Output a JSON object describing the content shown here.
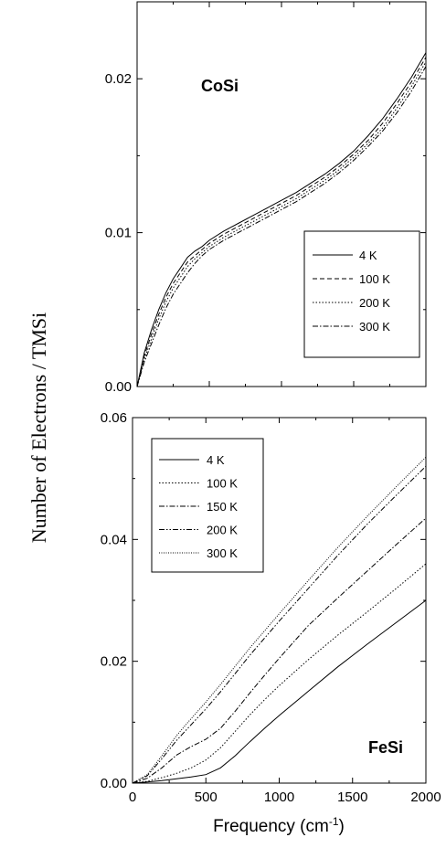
{
  "figure": {
    "ylabel": "Number of Electrons / TMSi",
    "xlabel_main": "Frequency (cm",
    "xlabel_sup": "-1",
    "xlabel_end": ")"
  },
  "chart_data": [
    {
      "type": "line",
      "panel_label": "CoSi",
      "xlim": [
        0,
        2000
      ],
      "ylim": [
        0,
        0.025
      ],
      "yticks": [
        0.0,
        0.01,
        0.02
      ],
      "ytick_labels": [
        "0.00",
        "0.01",
        "0.02"
      ],
      "xticks": [
        0,
        500,
        1000,
        1500,
        2000
      ],
      "xtick_labels": [],
      "legend_position": "center-right",
      "series": [
        {
          "name": "4 K",
          "style": "solid",
          "x": [
            0,
            50,
            100,
            150,
            200,
            250,
            300,
            350,
            400,
            450,
            500,
            600,
            700,
            800,
            900,
            1000,
            1100,
            1200,
            1300,
            1400,
            1500,
            1600,
            1700,
            1800,
            1900,
            2000
          ],
          "y": [
            0,
            0.0022,
            0.0037,
            0.005,
            0.0061,
            0.007,
            0.0077,
            0.0084,
            0.0088,
            0.0091,
            0.0095,
            0.0101,
            0.0106,
            0.0111,
            0.0116,
            0.0121,
            0.0126,
            0.0132,
            0.0138,
            0.0145,
            0.0153,
            0.0163,
            0.0174,
            0.0187,
            0.0201,
            0.0217
          ]
        },
        {
          "name": "100 K",
          "style": "dashed",
          "x": [
            0,
            50,
            100,
            150,
            200,
            250,
            300,
            350,
            400,
            450,
            500,
            600,
            700,
            800,
            900,
            1000,
            1100,
            1200,
            1300,
            1400,
            1500,
            1600,
            1700,
            1800,
            1900,
            2000
          ],
          "y": [
            0,
            0.002,
            0.0034,
            0.0047,
            0.0058,
            0.0067,
            0.0074,
            0.0081,
            0.0085,
            0.0089,
            0.0093,
            0.0099,
            0.0104,
            0.0109,
            0.0114,
            0.0119,
            0.0124,
            0.013,
            0.0136,
            0.0143,
            0.0151,
            0.016,
            0.0171,
            0.0184,
            0.0198,
            0.0214
          ]
        },
        {
          "name": "200 K",
          "style": "dotted",
          "x": [
            0,
            50,
            100,
            150,
            200,
            250,
            300,
            350,
            400,
            450,
            500,
            600,
            700,
            800,
            900,
            1000,
            1100,
            1200,
            1300,
            1400,
            1500,
            1600,
            1700,
            1800,
            1900,
            2000
          ],
          "y": [
            0,
            0.0018,
            0.0031,
            0.0044,
            0.0055,
            0.0064,
            0.0071,
            0.0078,
            0.0083,
            0.0087,
            0.0091,
            0.0097,
            0.0102,
            0.0107,
            0.0112,
            0.0117,
            0.0122,
            0.0128,
            0.0134,
            0.0141,
            0.0149,
            0.0158,
            0.0168,
            0.0181,
            0.0195,
            0.0211
          ]
        },
        {
          "name": "300 K",
          "style": "dashdot",
          "x": [
            0,
            50,
            100,
            150,
            200,
            250,
            300,
            350,
            400,
            450,
            500,
            600,
            700,
            800,
            900,
            1000,
            1100,
            1200,
            1300,
            1400,
            1500,
            1600,
            1700,
            1800,
            1900,
            2000
          ],
          "y": [
            0,
            0.0016,
            0.0028,
            0.004,
            0.0051,
            0.006,
            0.0067,
            0.0074,
            0.008,
            0.0085,
            0.0089,
            0.0095,
            0.01,
            0.0105,
            0.011,
            0.0115,
            0.012,
            0.0126,
            0.0132,
            0.0139,
            0.0147,
            0.0156,
            0.0166,
            0.0178,
            0.0192,
            0.0208
          ]
        }
      ]
    },
    {
      "type": "line",
      "panel_label": "FeSi",
      "xlim": [
        0,
        2000
      ],
      "ylim": [
        0,
        0.06
      ],
      "yticks": [
        0.0,
        0.02,
        0.04,
        0.06
      ],
      "ytick_labels": [
        "0.00",
        "0.02",
        "0.04",
        "0.06"
      ],
      "xticks": [
        0,
        500,
        1000,
        1500,
        2000
      ],
      "xtick_labels": [
        "0",
        "500",
        "1000",
        "1500",
        "2000"
      ],
      "legend_position": "top-left",
      "series": [
        {
          "name": "4 K",
          "style": "solid",
          "x": [
            0,
            100,
            200,
            300,
            400,
            500,
            600,
            700,
            800,
            900,
            1000,
            1200,
            1400,
            1600,
            1800,
            2000
          ],
          "y": [
            0,
            0.0002,
            0.0004,
            0.0007,
            0.001,
            0.0014,
            0.0025,
            0.0045,
            0.0068,
            0.009,
            0.0111,
            0.0151,
            0.0191,
            0.0228,
            0.0264,
            0.03
          ]
        },
        {
          "name": "100 K",
          "style": "dotted",
          "x": [
            0,
            100,
            200,
            300,
            400,
            500,
            600,
            700,
            800,
            900,
            1000,
            1200,
            1400,
            1600,
            1800,
            2000
          ],
          "y": [
            0,
            0.0003,
            0.0009,
            0.0016,
            0.0025,
            0.0038,
            0.0058,
            0.0085,
            0.0112,
            0.0137,
            0.016,
            0.0203,
            0.0243,
            0.0281,
            0.032,
            0.036
          ]
        },
        {
          "name": "150 K",
          "style": "dashdot",
          "x": [
            0,
            100,
            200,
            300,
            400,
            500,
            600,
            700,
            800,
            900,
            1000,
            1200,
            1400,
            1600,
            1800,
            2000
          ],
          "y": [
            0,
            0.0008,
            0.0025,
            0.0046,
            0.006,
            0.0072,
            0.009,
            0.0118,
            0.0148,
            0.0177,
            0.0205,
            0.0259,
            0.0304,
            0.0348,
            0.0392,
            0.0435
          ]
        },
        {
          "name": "200 K",
          "style": "dashdotdot",
          "x": [
            0,
            100,
            200,
            300,
            400,
            500,
            600,
            700,
            800,
            900,
            1000,
            1200,
            1400,
            1600,
            1800,
            2000
          ],
          "y": [
            0,
            0.0012,
            0.004,
            0.007,
            0.0096,
            0.0122,
            0.015,
            0.018,
            0.021,
            0.0238,
            0.0266,
            0.032,
            0.0374,
            0.0425,
            0.0473,
            0.052
          ]
        },
        {
          "name": "300 K",
          "style": "shortdot",
          "x": [
            0,
            100,
            200,
            300,
            400,
            500,
            600,
            700,
            800,
            900,
            1000,
            1200,
            1400,
            1600,
            1800,
            2000
          ],
          "y": [
            0,
            0.0014,
            0.0045,
            0.0078,
            0.0106,
            0.0133,
            0.0162,
            0.0192,
            0.0222,
            0.025,
            0.0278,
            0.0333,
            0.0387,
            0.0438,
            0.0487,
            0.0535
          ]
        }
      ]
    }
  ]
}
